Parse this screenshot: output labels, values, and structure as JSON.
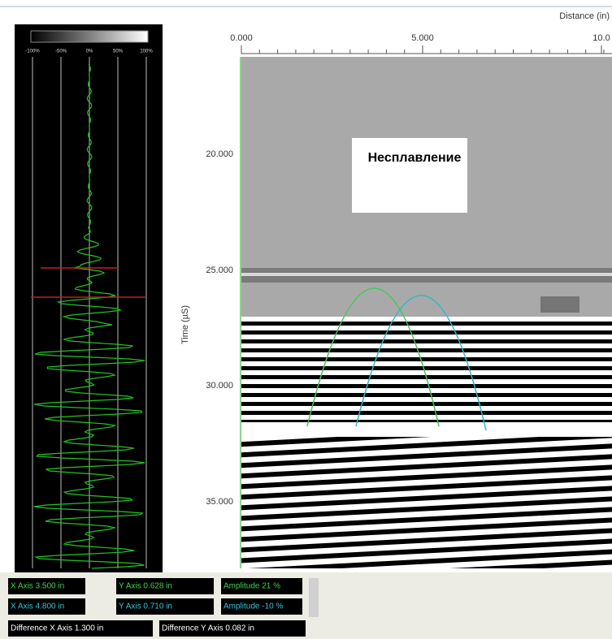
{
  "top_axis": {
    "label": "Distance (in)",
    "ticks": [
      "0.000",
      "5.000",
      "10.0"
    ]
  },
  "left_axis": {
    "label": "Time (µS)",
    "ticks": [
      "20.000",
      "25.000",
      "30.000",
      "35.000"
    ]
  },
  "annotation": "Несплавление",
  "a_scan": {
    "scale_labels": [
      "-100%",
      "-50%",
      "0%",
      "50%",
      "100%"
    ]
  },
  "status": {
    "rows": [
      [
        "X Axis  3.500 in",
        "Y Axis  0.628 in",
        "Amplitude  21 %"
      ],
      [
        "X Axis  4.800 in",
        "Y Axis  0.710 in",
        "Amplitude  -10 %"
      ],
      [
        "Difference X Axis  1.300 in",
        "Difference Y Axis  0.082 in"
      ]
    ]
  }
}
